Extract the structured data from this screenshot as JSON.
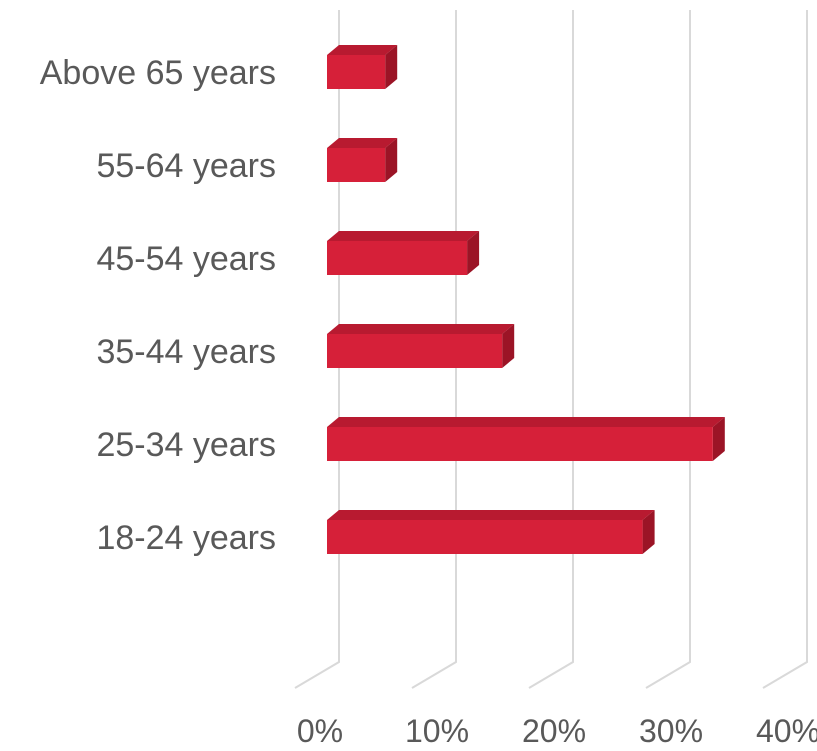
{
  "chart_data": {
    "type": "bar",
    "orientation": "horizontal",
    "style": "3d",
    "categories": [
      "18-24 years",
      "25-34 years",
      "35-44 years",
      "45-54 years",
      "55-64 years",
      "Above 65 years"
    ],
    "values": [
      28,
      34,
      16,
      13,
      6,
      6
    ],
    "value_unit": "%",
    "xlim": [
      0,
      40
    ],
    "xticks": [
      "0%",
      "10%",
      "20%",
      "30%",
      "40%"
    ],
    "grid": true,
    "legend": "none",
    "colors": {
      "bar_front": "#d62039",
      "bar_top": "#b81a30",
      "bar_side": "#9b1426",
      "grid": "#d9d9d9",
      "label": "#595959"
    }
  }
}
